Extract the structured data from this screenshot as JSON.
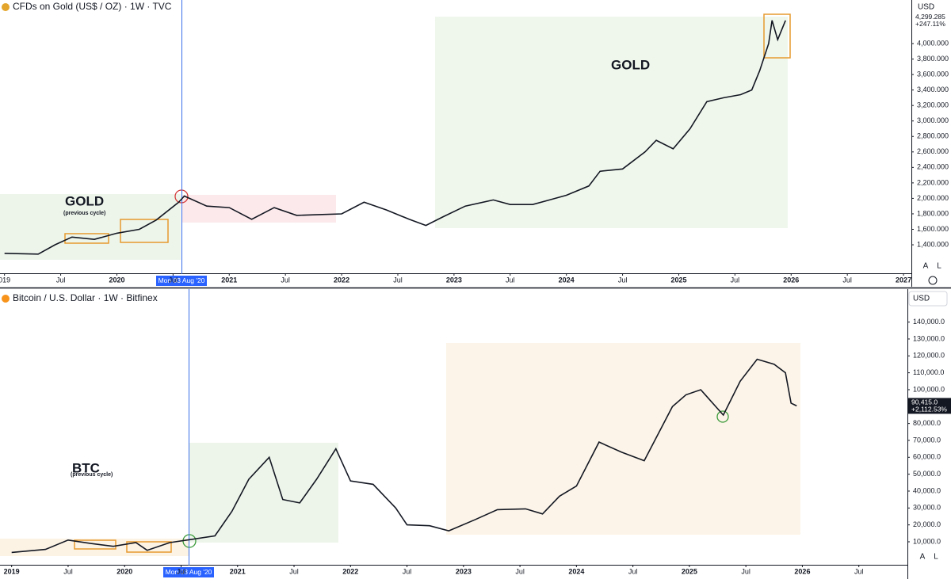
{
  "chart_data": [
    {
      "type": "line",
      "title": "CFDs on Gold (US$ / OZ) · 1W · TVC",
      "currency": "USD",
      "color": "#131722",
      "x": [
        2019.0,
        2019.3,
        2019.45,
        2019.6,
        2019.8,
        2020.0,
        2020.2,
        2020.35,
        2020.55,
        2020.6,
        2020.8,
        2021.0,
        2021.2,
        2021.4,
        2021.6,
        2021.8,
        2022.0,
        2022.2,
        2022.4,
        2022.6,
        2022.75,
        2022.9,
        2023.1,
        2023.35,
        2023.5,
        2023.7,
        2023.85,
        2024.0,
        2024.2,
        2024.3,
        2024.5,
        2024.7,
        2024.8,
        2024.95,
        2025.1,
        2025.25,
        2025.4,
        2025.55,
        2025.65,
        2025.72,
        2025.8,
        2025.83,
        2025.88,
        2025.95
      ],
      "values": [
        1290,
        1280,
        1400,
        1500,
        1470,
        1550,
        1600,
        1720,
        1950,
        2030,
        1900,
        1880,
        1730,
        1880,
        1780,
        1790,
        1800,
        1950,
        1850,
        1730,
        1650,
        1760,
        1900,
        1980,
        1920,
        1920,
        1980,
        2040,
        2160,
        2350,
        2380,
        2600,
        2750,
        2640,
        2900,
        3250,
        3300,
        3340,
        3400,
        3650,
        4000,
        4300,
        4050,
        4299.285
      ],
      "last_price": {
        "value": 4299.285,
        "label": "4,299.285"
      },
      "change_label": "+247.11%",
      "xlim": [
        2018.96,
        2027.07
      ],
      "xticks": [
        {
          "value": 2019,
          "label": "019"
        },
        {
          "value": 2019.5,
          "label": "Jul"
        },
        2020,
        {
          "value": 2020.5,
          "label": "Jul"
        },
        2021,
        {
          "value": 2021.5,
          "label": "Jul"
        },
        2022,
        {
          "value": 2022.5,
          "label": "Jul"
        },
        2023,
        {
          "value": 2023.5,
          "label": "Jul"
        },
        2024,
        {
          "value": 2024.5,
          "label": "Jul"
        },
        2025,
        {
          "value": 2025.5,
          "label": "Jul"
        },
        2026,
        {
          "value": 2026.5,
          "label": "Jul"
        },
        2027
      ],
      "ylim": [
        1032,
        4563
      ],
      "yticks": [
        {
          "value": 1400,
          "label": "1,400.000"
        },
        {
          "value": 1600,
          "label": "1,600.000"
        },
        {
          "value": 1800,
          "label": "1,800.000"
        },
        {
          "value": 2000,
          "label": "2,000.000"
        },
        {
          "value": 2200,
          "label": "2,200.000"
        },
        {
          "value": 2400,
          "label": "2,400.000"
        },
        {
          "value": 2600,
          "label": "2,600.000"
        },
        {
          "value": 2800,
          "label": "2,800.000"
        },
        {
          "value": 3000,
          "label": "3,000.000"
        },
        {
          "value": 3200,
          "label": "3,200.000"
        },
        {
          "value": 3400,
          "label": "3,400.000"
        },
        {
          "value": 3600,
          "label": "3,600.000"
        },
        {
          "value": 3800,
          "label": "3,800.000"
        },
        {
          "value": 4000,
          "label": "4,000.000"
        }
      ],
      "annotations": [
        "GOLD",
        "(previous cycle)",
        "GOLD"
      ],
      "crosshair_label": "Mon 03 Aug '20",
      "scale_buttons": [
        "A",
        "L"
      ]
    },
    {
      "type": "line",
      "title": "Bitcoin / U.S. Dollar · 1W · Bitfinex",
      "currency": "USD",
      "color": "#131722",
      "x": [
        2019.0,
        2019.3,
        2019.5,
        2019.7,
        2019.9,
        2020.1,
        2020.2,
        2020.4,
        2020.6,
        2020.8,
        2020.95,
        2021.1,
        2021.28,
        2021.4,
        2021.55,
        2021.7,
        2021.87,
        2022.0,
        2022.2,
        2022.4,
        2022.5,
        2022.7,
        2022.87,
        2023.1,
        2023.3,
        2023.55,
        2023.7,
        2023.85,
        2024.0,
        2024.2,
        2024.4,
        2024.6,
        2024.85,
        2024.97,
        2025.1,
        2025.3,
        2025.45,
        2025.6,
        2025.75,
        2025.85,
        2025.9,
        2025.95
      ],
      "values": [
        3700,
        5500,
        11000,
        9000,
        7300,
        9500,
        5000,
        9500,
        11500,
        13500,
        28000,
        47000,
        60000,
        35000,
        33000,
        47000,
        65000,
        46000,
        44000,
        30000,
        20000,
        19500,
        16500,
        23000,
        29000,
        29500,
        26500,
        37000,
        43000,
        69000,
        63000,
        58000,
        90000,
        97000,
        100000,
        85000,
        105000,
        118000,
        115000,
        110000,
        92000,
        90415
      ],
      "last_price": {
        "value": 90415,
        "label": "90,415.0"
      },
      "change_label": "+2,112.53%",
      "xlim": [
        2018.897,
        2026.93
      ],
      "xticks": [
        2019,
        {
          "value": 2019.5,
          "label": "Jul"
        },
        2020,
        {
          "value": 2020.5,
          "label": "Jul"
        },
        2021,
        {
          "value": 2021.5,
          "label": "Jul"
        },
        2022,
        {
          "value": 2022.5,
          "label": "Jul"
        },
        2023,
        {
          "value": 2023.5,
          "label": "Jul"
        },
        2024,
        {
          "value": 2024.5,
          "label": "Jul"
        },
        2025,
        {
          "value": 2025.5,
          "label": "Jul"
        },
        2026,
        {
          "value": 2026.5,
          "label": "Jul"
        }
      ],
      "ylim": [
        -3600,
        159500
      ],
      "yticks": [
        {
          "value": 10000,
          "label": "10,000.0"
        },
        {
          "value": 20000,
          "label": "20,000.0"
        },
        {
          "value": 30000,
          "label": "30,000.0"
        },
        {
          "value": 40000,
          "label": "40,000.0"
        },
        {
          "value": 50000,
          "label": "50,000.0"
        },
        {
          "value": 60000,
          "label": "60,000.0"
        },
        {
          "value": 70000,
          "label": "70,000.0"
        },
        {
          "value": 80000,
          "label": "80,000.0"
        },
        {
          "value": 90000,
          "label": "90,000.0"
        },
        {
          "value": 100000,
          "label": "100,000.0"
        },
        {
          "value": 110000,
          "label": "110,000.0"
        },
        {
          "value": 120000,
          "label": "120,000.0"
        },
        {
          "value": 130000,
          "label": "130,000.0"
        },
        {
          "value": 140000,
          "label": "140,000.0"
        }
      ],
      "annotations": [
        "BTC",
        "(previous cycle)"
      ],
      "crosshair_label": "Mon 03 Aug '20",
      "scale_buttons": [
        "A",
        "L"
      ]
    }
  ]
}
